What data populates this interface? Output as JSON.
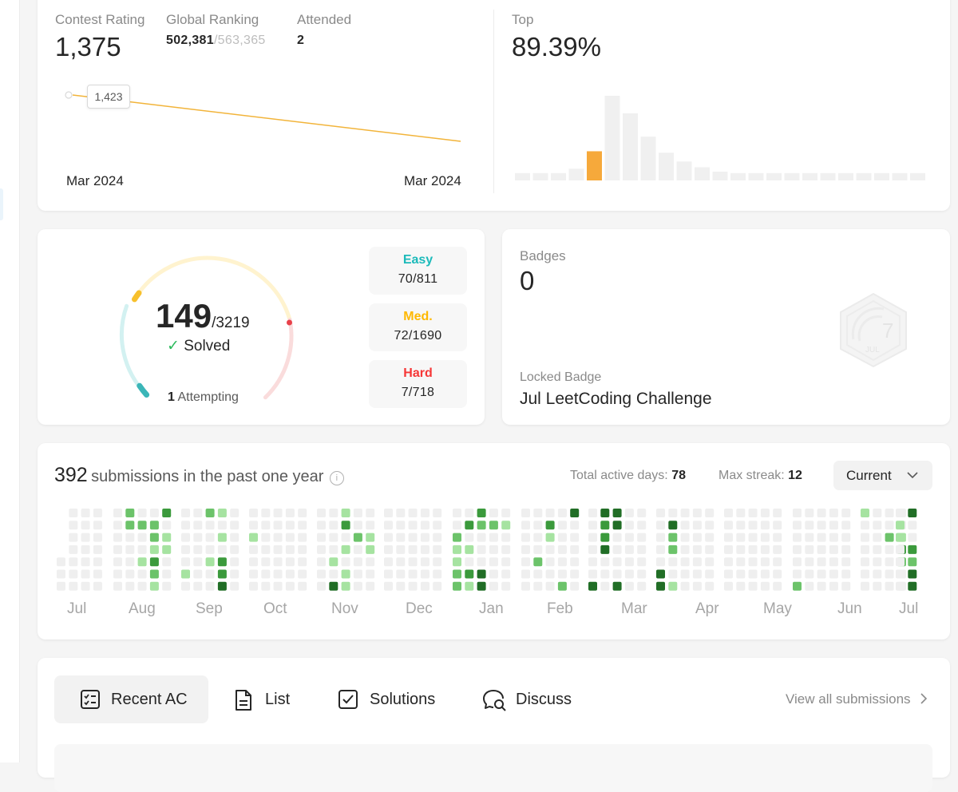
{
  "contest": {
    "rating_label": "Contest Rating",
    "rating": "1,375",
    "ranking_label": "Global Ranking",
    "ranking": "502,381",
    "ranking_total": "/563,365",
    "attended_label": "Attended",
    "attended": "2",
    "tooltip": "1,423",
    "start_date": "Mar 2024",
    "end_date": "Mar 2024",
    "top_label": "Top",
    "top_value": "89.39%",
    "histogram": {
      "values": [
        5,
        5,
        5,
        8,
        20,
        58,
        46,
        30,
        19,
        13,
        9,
        6,
        5,
        5,
        5,
        5,
        5,
        5,
        5,
        5,
        5,
        5,
        5
      ],
      "highlight_index": 4,
      "bar_color": "#f0f0f0",
      "highlight_color": "#f6a93b"
    },
    "line_color": "#f2b43a"
  },
  "problems": {
    "solved": "149",
    "total": "/3219",
    "solved_label": "Solved",
    "attempting_count": "1",
    "attempting_label": "Attempting",
    "easy": {
      "label": "Easy",
      "value": "70/811",
      "color": "#1cbaba"
    },
    "medium": {
      "label": "Med.",
      "value": "72/1690",
      "color": "#ffb800"
    },
    "hard": {
      "label": "Hard",
      "value": "7/718",
      "color": "#f63737"
    }
  },
  "badges": {
    "label": "Badges",
    "count": "0",
    "locked_label": "Locked Badge",
    "locked_name": "Jul LeetCoding Challenge",
    "badge_number": "7",
    "badge_month": "JUL"
  },
  "submissions": {
    "count": "392",
    "text": "submissions in the past one year",
    "active_days_label": "Total active days:",
    "active_days": "78",
    "max_streak_label": "Max streak:",
    "max_streak": "12",
    "dropdown_value": "Current",
    "months": [
      "Jul",
      "Aug",
      "Sep",
      "Oct",
      "Nov",
      "Dec",
      "Jan",
      "Feb",
      "Mar",
      "Apr",
      "May",
      "Jun",
      "Jul"
    ],
    "colors": {
      "empty": "#efefef",
      "l1": "#a6e3a1",
      "l2": "#6cc36a",
      "l3": "#3b9a3c",
      "l4": "#216e26"
    }
  },
  "tabs": {
    "items": [
      {
        "label": "Recent AC",
        "icon": "checklist-icon"
      },
      {
        "label": "List",
        "icon": "document-icon"
      },
      {
        "label": "Solutions",
        "icon": "checkbox-icon"
      },
      {
        "label": "Discuss",
        "icon": "chat-search-icon"
      }
    ],
    "view_all": "View all submissions"
  }
}
